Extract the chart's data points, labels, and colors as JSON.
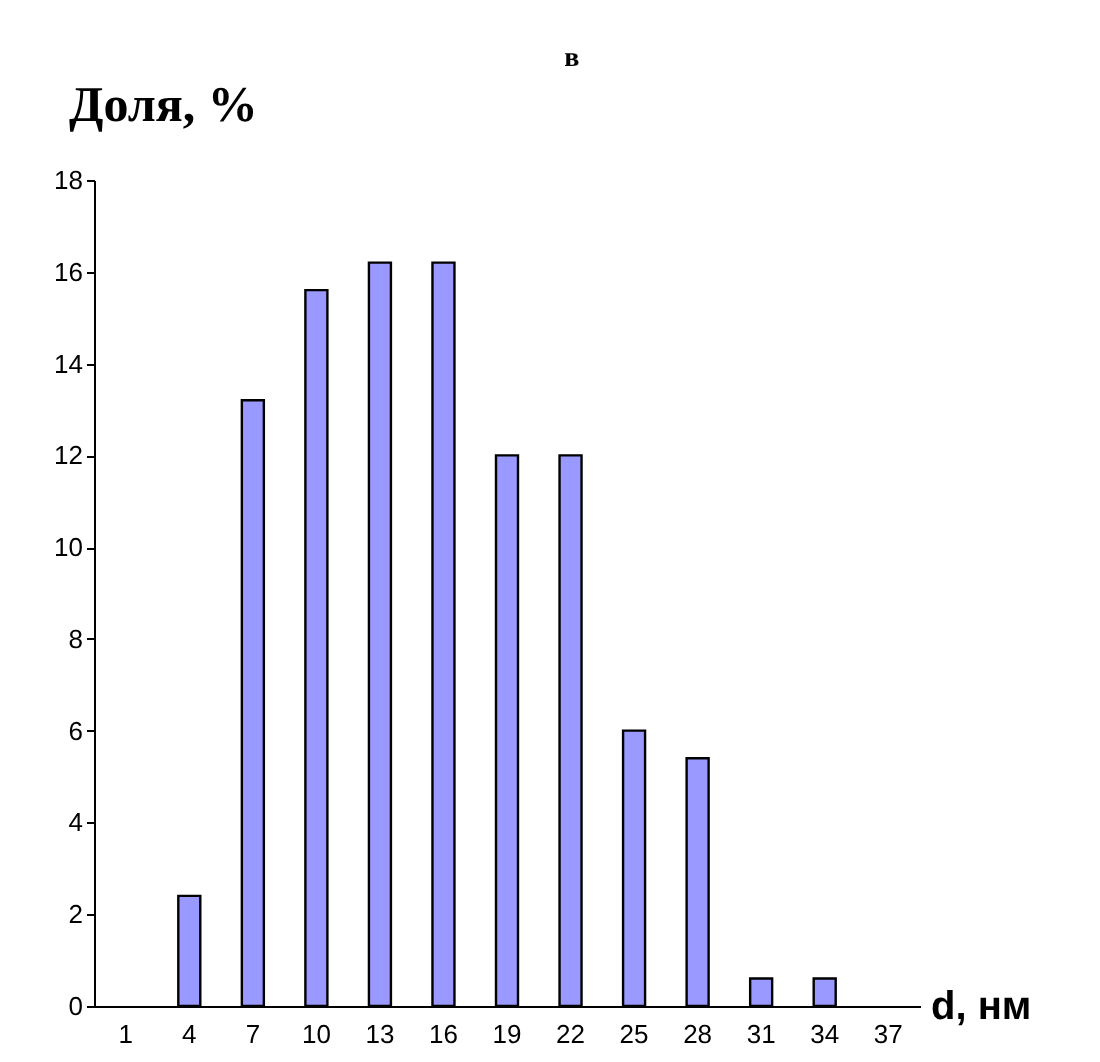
{
  "chart_data": {
    "type": "bar",
    "title": "в",
    "ylabel": "Доля, %",
    "xlabel": "d, нм",
    "categories": [
      "1",
      "4",
      "7",
      "10",
      "13",
      "16",
      "19",
      "22",
      "25",
      "28",
      "31",
      "34",
      "37"
    ],
    "values": [
      null,
      2.4,
      13.2,
      15.6,
      16.2,
      16.2,
      12,
      12,
      6,
      5.4,
      0.6,
      0.6,
      null
    ],
    "color": "#9999ff",
    "ylim": [
      0,
      18
    ],
    "yticks": [
      0,
      2,
      4,
      6,
      8,
      10,
      12,
      14,
      16,
      18
    ],
    "grid": false
  }
}
